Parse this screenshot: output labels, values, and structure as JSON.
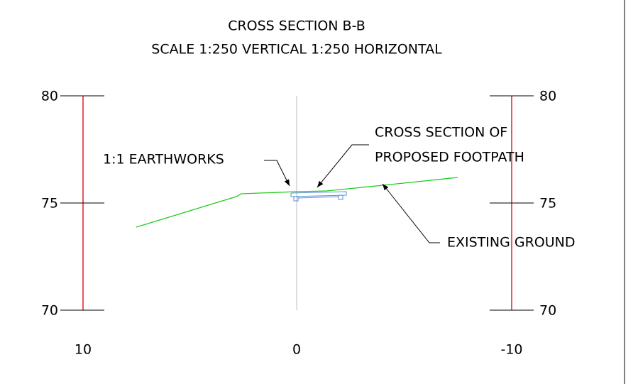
{
  "header": {
    "title": "CROSS SECTION B-B",
    "subtitle": "SCALE 1:250 VERTICAL 1:250 HORIZONTAL"
  },
  "left_scale": {
    "labels": [
      80,
      75,
      70
    ]
  },
  "right_scale": {
    "labels": [
      80,
      75,
      70
    ]
  },
  "offsets": {
    "labels": [
      10,
      0,
      -10
    ]
  },
  "annotations": {
    "earthworks": "1:1 EARTHWORKS",
    "footpath": [
      "CROSS SECTION OF",
      "PROPOSED FOOTPATH"
    ],
    "ground": "EXISTING GROUND"
  }
}
